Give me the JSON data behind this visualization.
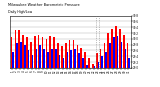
{
  "title": "Milwaukee Weather Barometric Pressure",
  "subtitle": "Daily High/Low",
  "ylim": [
    29.0,
    30.8
  ],
  "yticks": [
    29.0,
    29.2,
    29.4,
    29.6,
    29.8,
    30.0,
    30.2,
    30.4,
    30.6,
    30.8
  ],
  "ytick_labels": [
    "29.0",
    "29.2",
    "29.4",
    "29.6",
    "29.8",
    "30.0",
    "30.2",
    "30.4",
    "30.6",
    "30.8"
  ],
  "bar_width": 0.42,
  "high_color": "#ff0000",
  "low_color": "#0000ff",
  "background_color": "#ffffff",
  "days": [
    "1",
    "2",
    "3",
    "4",
    "5",
    "6",
    "7",
    "8",
    "9",
    "10",
    "11",
    "12",
    "13",
    "14",
    "15",
    "16",
    "17",
    "18",
    "19",
    "20",
    "21",
    "22",
    "23",
    "24",
    "25",
    "26",
    "27",
    "28",
    "29",
    "30",
    "31"
  ],
  "highs": [
    30.05,
    30.3,
    30.3,
    30.15,
    30.05,
    29.9,
    30.1,
    30.15,
    30.05,
    30.0,
    30.1,
    30.05,
    29.85,
    29.75,
    29.85,
    29.95,
    29.95,
    29.8,
    29.7,
    29.55,
    29.35,
    29.15,
    29.5,
    29.65,
    29.85,
    30.2,
    30.35,
    30.45,
    30.35,
    30.15,
    29.85
  ],
  "lows": [
    29.55,
    29.85,
    29.9,
    29.8,
    29.6,
    29.45,
    29.65,
    29.8,
    29.65,
    29.55,
    29.65,
    29.65,
    29.45,
    29.35,
    29.55,
    29.6,
    29.65,
    29.5,
    29.35,
    29.1,
    29.0,
    29.05,
    29.2,
    29.4,
    29.55,
    29.85,
    30.05,
    30.1,
    29.9,
    29.65,
    29.35
  ],
  "vline_positions": [
    21.5,
    22.5
  ],
  "figsize": [
    1.6,
    0.87
  ],
  "dpi": 100
}
